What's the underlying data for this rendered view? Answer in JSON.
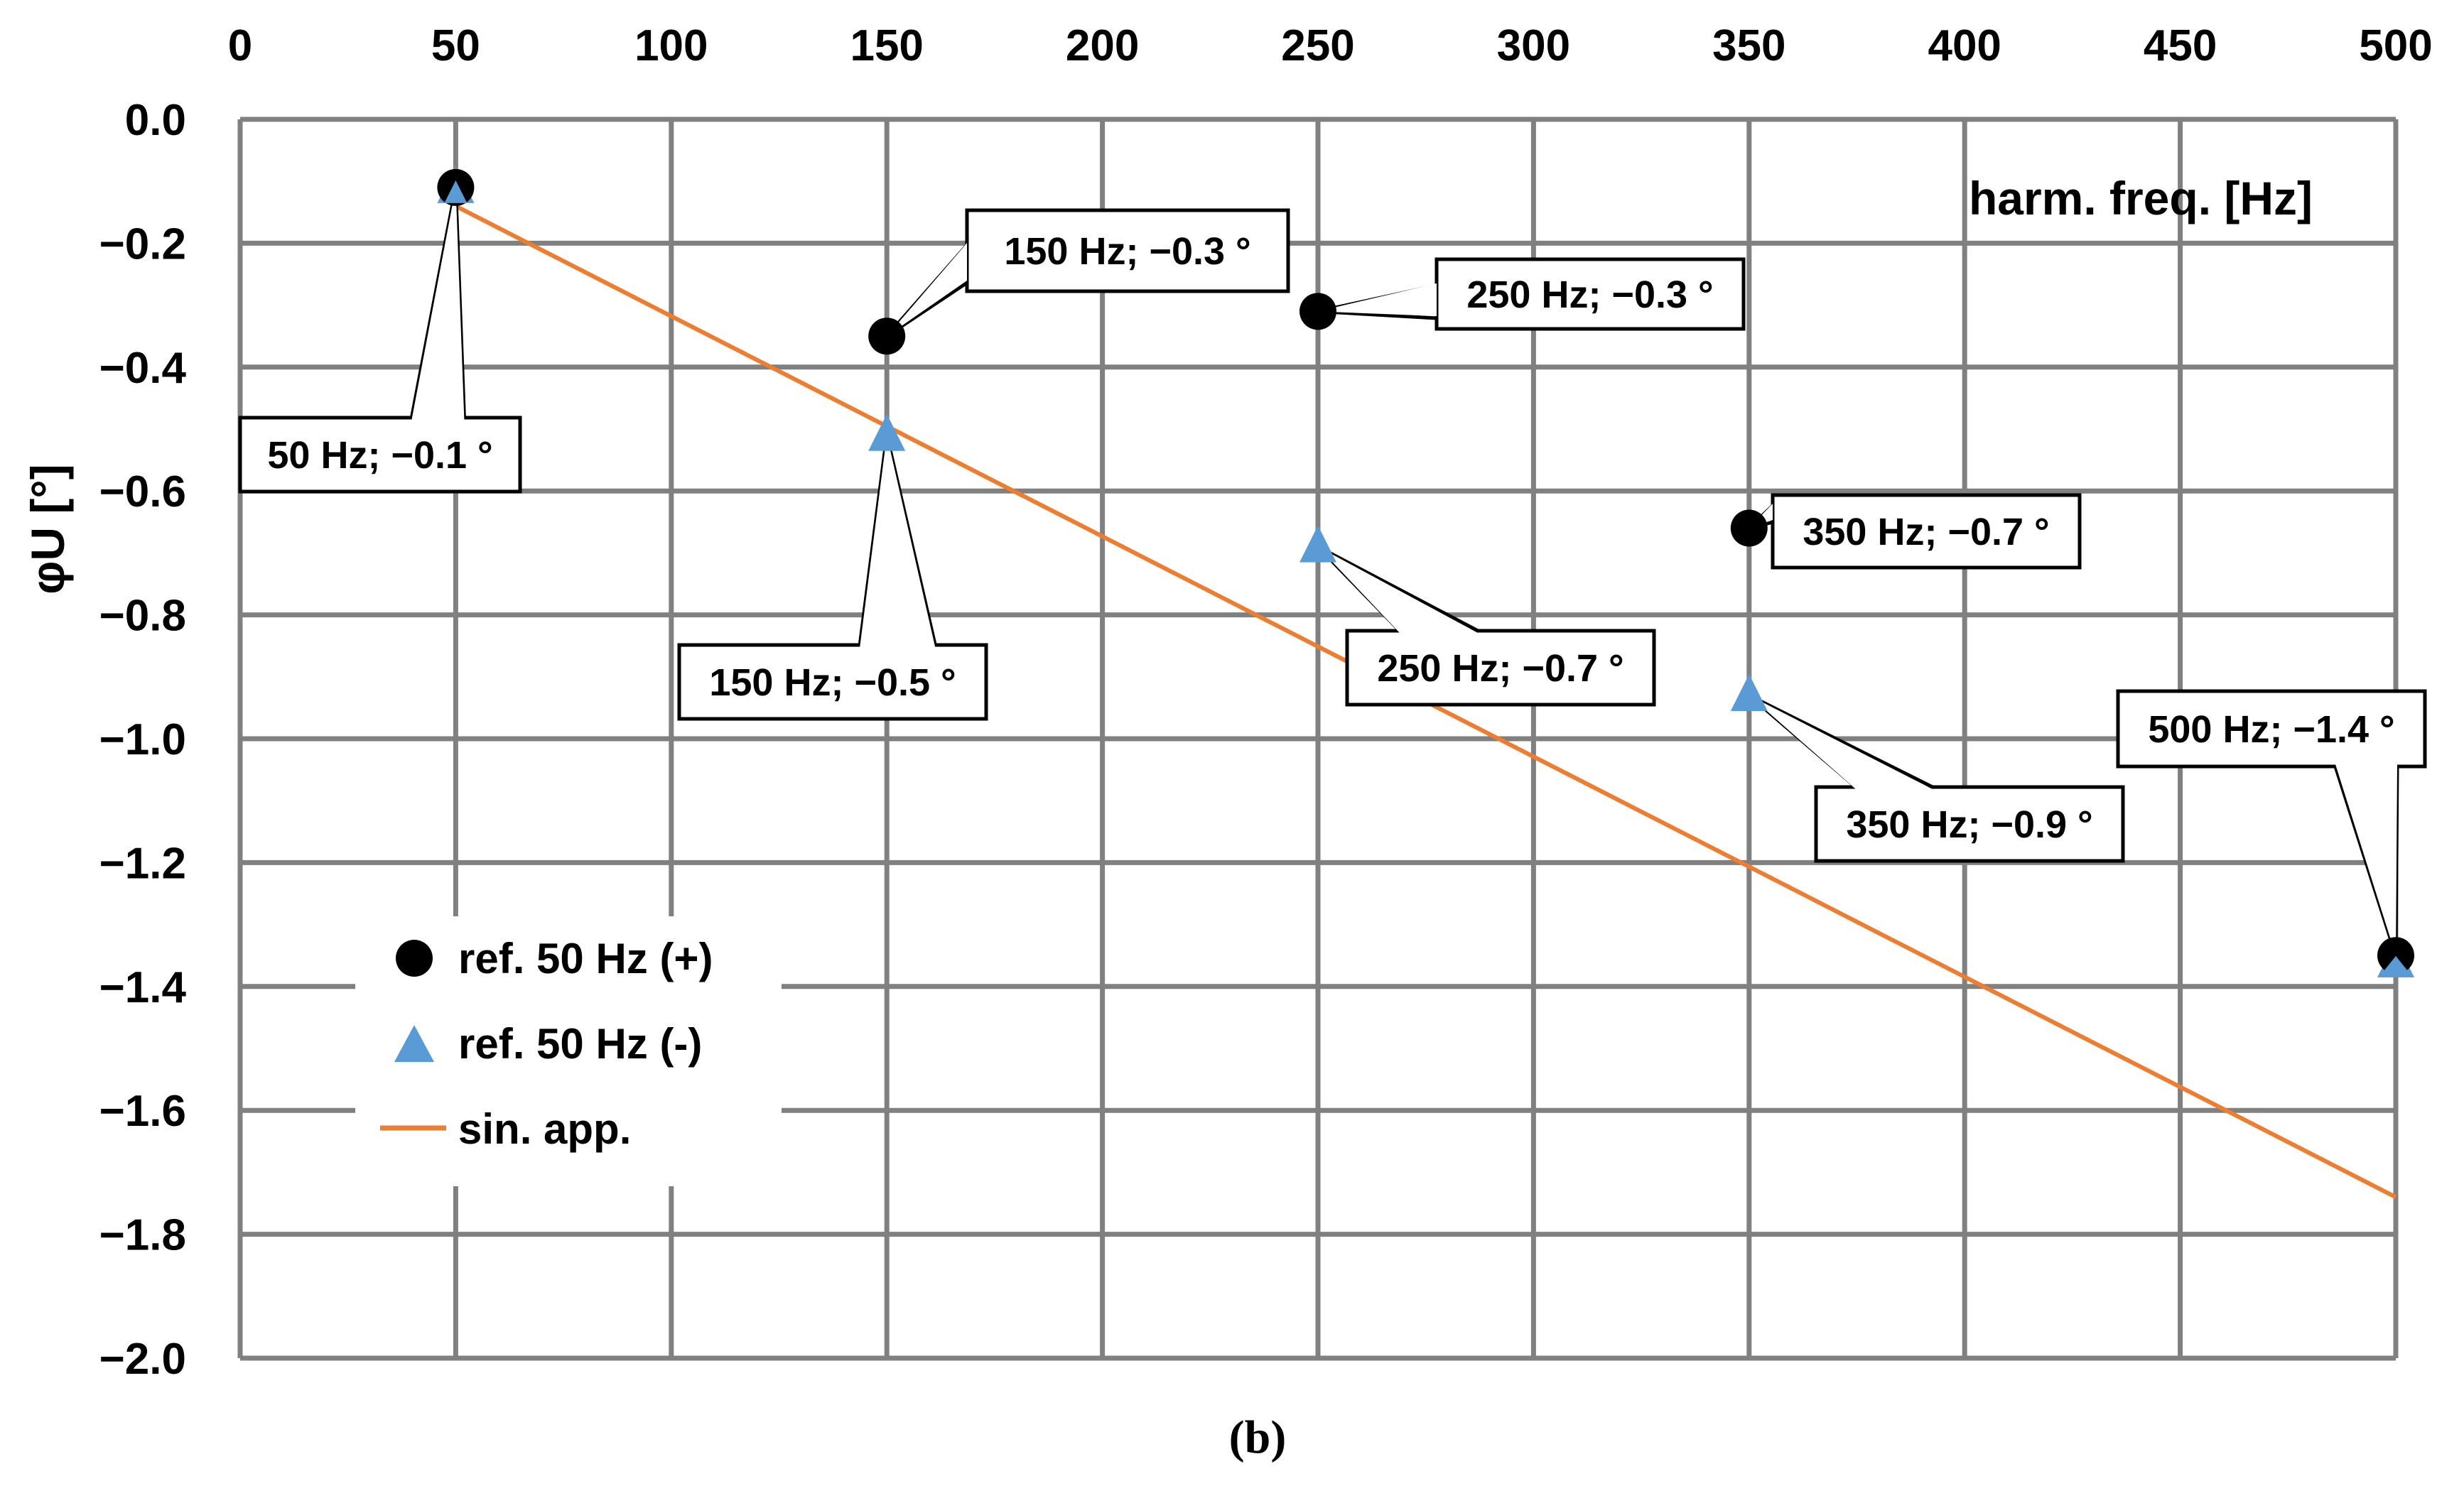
{
  "chart_data": {
    "type": "scatter",
    "x_axis_label": "harm. freq. [Hz]",
    "y_axis_label": "φU [°]",
    "xlim": [
      0,
      500
    ],
    "ylim": [
      -2.0,
      0.0
    ],
    "x_ticks": [
      "0",
      "50",
      "100",
      "150",
      "200",
      "250",
      "300",
      "350",
      "400",
      "450",
      "500"
    ],
    "y_ticks": [
      "0.0",
      "−0.2",
      "−0.4",
      "−0.6",
      "−0.8",
      "−1.0",
      "−1.2",
      "−1.4",
      "−1.6",
      "−1.8",
      "−2.0"
    ],
    "x_tick_values": [
      0,
      50,
      100,
      150,
      200,
      250,
      300,
      350,
      400,
      450,
      500
    ],
    "y_tick_values": [
      0.0,
      -0.2,
      -0.4,
      -0.6,
      -0.8,
      -1.0,
      -1.2,
      -1.4,
      -1.6,
      -1.8,
      -2.0
    ],
    "grid": true,
    "x_axis_position": "top",
    "legend_position": "bottom-left",
    "series": [
      {
        "name": "ref. 50 Hz (+)",
        "marker": "circle",
        "color": "#000000",
        "points": [
          {
            "x": 50,
            "y": -0.11
          },
          {
            "x": 150,
            "y": -0.35
          },
          {
            "x": 250,
            "y": -0.31
          },
          {
            "x": 350,
            "y": -0.66
          },
          {
            "x": 500,
            "y": -1.35
          }
        ]
      },
      {
        "name": "ref. 50 Hz (-)",
        "marker": "triangle",
        "color": "#5B9BD5",
        "points": [
          {
            "x": 50,
            "y": -0.11
          },
          {
            "x": 150,
            "y": -0.51
          },
          {
            "x": 250,
            "y": -0.69
          },
          {
            "x": 350,
            "y": -0.93
          },
          {
            "x": 500,
            "y": -1.36
          }
        ]
      },
      {
        "name": "sin. app.",
        "marker": "line",
        "color": "#ED7D31",
        "points": [
          {
            "x": 50,
            "y": -0.14
          },
          {
            "x": 500,
            "y": -1.74
          }
        ]
      }
    ],
    "annotations": [
      {
        "text": "50 Hz; −0.1 °",
        "x": 50,
        "y": -0.11
      },
      {
        "text": "150 Hz; −0.3 °",
        "x": 150,
        "y": -0.35
      },
      {
        "text": "250 Hz; −0.3 °",
        "x": 250,
        "y": -0.31
      },
      {
        "text": "350 Hz; −0.7 °",
        "x": 350,
        "y": -0.66
      },
      {
        "text": "150 Hz; −0.5 °",
        "x": 150,
        "y": -0.51
      },
      {
        "text": "250 Hz; −0.7 °",
        "x": 250,
        "y": -0.69
      },
      {
        "text": "350 Hz; −0.9 °",
        "x": 350,
        "y": -0.93
      },
      {
        "text": "500 Hz; −1.4 °",
        "x": 500,
        "y": -1.35
      }
    ]
  },
  "caption": "(b)"
}
